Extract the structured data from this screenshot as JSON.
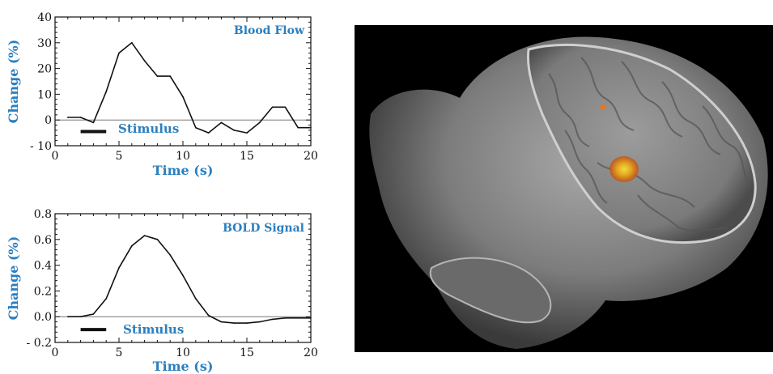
{
  "colors": {
    "label_blue": "#2a7fc0",
    "line": "#111111",
    "zero_line": "#777777",
    "stimulus_bar": "#111111",
    "activation": "#f0a020"
  },
  "brain_image": {
    "description_icon": "brain-3d-render-with-activation"
  },
  "chart_data": [
    {
      "type": "line",
      "series_label": "Blood Flow",
      "xlabel": "Time (s)",
      "ylabel": "Change (%)",
      "xlim": [
        0,
        20
      ],
      "ylim": [
        -10,
        40
      ],
      "x_ticks": [
        0,
        5,
        10,
        15,
        20
      ],
      "x_tick_labels": [
        "0",
        "5",
        "10",
        "15",
        "20"
      ],
      "y_ticks": [
        -10,
        0,
        10,
        20,
        30,
        40
      ],
      "y_tick_labels": [
        "- 10",
        "0",
        "10",
        "20",
        "30",
        "40"
      ],
      "x": [
        1,
        2,
        3,
        4,
        5,
        6,
        7,
        8,
        9,
        10,
        11,
        12,
        13,
        14,
        15,
        16,
        17,
        18,
        19,
        20
      ],
      "y": [
        1,
        1,
        -1,
        11,
        26,
        30,
        23,
        17,
        17,
        9,
        -3,
        -5,
        -1,
        -4,
        -5,
        -1,
        5,
        5,
        -3,
        -3
      ],
      "stimulus": {
        "label": "Stimulus",
        "start": 2,
        "end": 4,
        "y": -4.5
      },
      "grid": false
    },
    {
      "type": "line",
      "series_label": "BOLD Signal",
      "xlabel": "Time (s)",
      "ylabel": "Change (%)",
      "xlim": [
        0,
        20
      ],
      "ylim": [
        -0.2,
        0.8
      ],
      "x_ticks": [
        0,
        5,
        10,
        15,
        20
      ],
      "x_tick_labels": [
        "0",
        "5",
        "10",
        "15",
        "20"
      ],
      "y_ticks": [
        -0.2,
        0.0,
        0.2,
        0.4,
        0.6,
        0.8
      ],
      "y_tick_labels": [
        "- 0.2",
        "0.0",
        "0.2",
        "0.4",
        "0.6",
        "0.8"
      ],
      "x": [
        1,
        2,
        3,
        4,
        5,
        6,
        7,
        8,
        9,
        10,
        11,
        12,
        13,
        14,
        15,
        16,
        17,
        18,
        19,
        20
      ],
      "y": [
        0,
        0,
        0.02,
        0.14,
        0.38,
        0.55,
        0.63,
        0.6,
        0.48,
        0.32,
        0.14,
        0.01,
        -0.04,
        -0.05,
        -0.05,
        -0.04,
        -0.02,
        -0.01,
        -0.01,
        -0.01
      ],
      "stimulus": {
        "label": "Stimulus",
        "start": 2,
        "end": 4,
        "y": -0.1
      },
      "grid": false
    }
  ]
}
